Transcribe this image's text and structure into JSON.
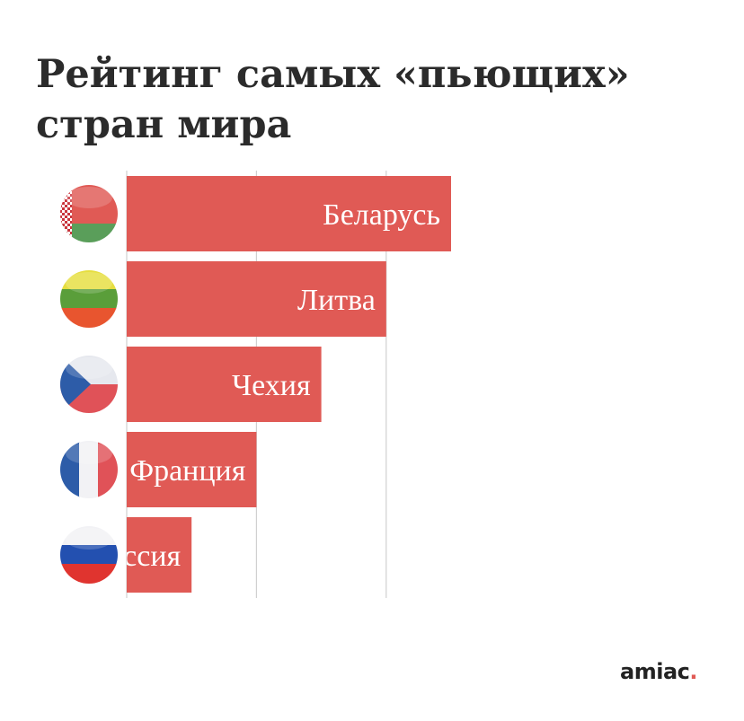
{
  "title": "Рейтинг самых «пьющих» стран мира",
  "logo": {
    "text": "amiac",
    "dot": "."
  },
  "colors": {
    "bar": "#e05a55",
    "grid": "#d0d0d0",
    "label": "#ffffff"
  },
  "chart_data": {
    "type": "bar",
    "orientation": "horizontal",
    "categories": [
      "Беларусь",
      "Литва",
      "Чехия",
      "Франция",
      "Россия"
    ],
    "values": [
      5,
      4,
      3,
      2,
      1
    ],
    "flags": [
      "belarus-flag-icon",
      "lithuania-flag-icon",
      "czech-flag-icon",
      "france-flag-icon",
      "russia-flag-icon"
    ],
    "grid": true
  }
}
